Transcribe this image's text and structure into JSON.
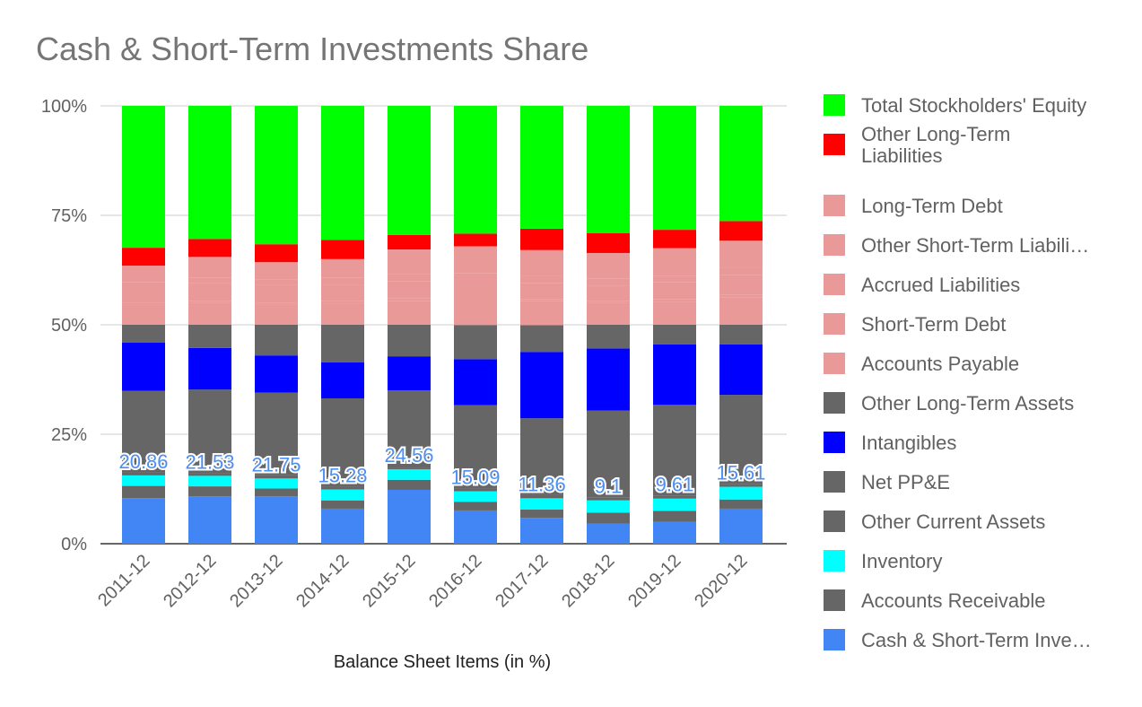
{
  "chart_data": {
    "type": "bar",
    "stacked": "percent",
    "title": "Cash & Short-Term Investments Share",
    "xlabel": "Balance Sheet Items (in %)",
    "ylabel": "",
    "ylim": [
      0,
      100
    ],
    "y_ticks": [
      "0%",
      "25%",
      "50%",
      "75%",
      "100%"
    ],
    "grid": true,
    "legend_position": "right",
    "categories": [
      "2011-12",
      "2012-12",
      "2013-12",
      "2014-12",
      "2015-12",
      "2016-12",
      "2017-12",
      "2018-12",
      "2019-12",
      "2020-12"
    ],
    "series": [
      {
        "name": "Cash & Short-Term Investments",
        "legend_label": "Cash & Short-Term Inve…",
        "color": "#4285f4",
        "values": [
          10.4,
          10.8,
          10.8,
          8.0,
          12.3,
          7.6,
          5.9,
          4.6,
          5.0,
          8.0
        ],
        "data_labels": [
          "20.86",
          "21.53",
          "21.75",
          "15.28",
          "24.56",
          "15.09",
          "11.36",
          "9.1",
          "9.61",
          "15.61"
        ]
      },
      {
        "name": "Accounts Receivable",
        "legend_label": "Accounts Receivable",
        "color": "#666666",
        "values": [
          2.8,
          2.3,
          1.8,
          1.9,
          2.3,
          2.0,
          1.9,
          2.5,
          2.5,
          2.1
        ]
      },
      {
        "name": "Inventory",
        "legend_label": "Inventory",
        "color": "#00ffff",
        "values": [
          2.4,
          2.4,
          2.3,
          2.5,
          2.4,
          2.4,
          2.6,
          2.8,
          2.8,
          2.9
        ]
      },
      {
        "name": "Other Current Assets",
        "legend_label": "Other Current Assets",
        "color": "#666666",
        "values": [
          0.6,
          0.5,
          0.8,
          0.6,
          0.4,
          0.6,
          0.7,
          0.6,
          0.7,
          0.6
        ]
      },
      {
        "name": "Net PP&E",
        "legend_label": "Net PP&E",
        "color": "#666666",
        "values": [
          18.7,
          19.2,
          18.8,
          20.2,
          17.6,
          19.1,
          17.6,
          19.9,
          20.7,
          20.4
        ]
      },
      {
        "name": "Intangibles",
        "legend_label": "Intangibles",
        "color": "#0000ff",
        "values": [
          11.0,
          9.5,
          8.5,
          8.2,
          7.8,
          10.5,
          15.2,
          14.2,
          13.8,
          11.5
        ]
      },
      {
        "name": "Other Long-Term Assets",
        "legend_label": "Other Long-Term Assets",
        "color": "#666666",
        "values": [
          4.1,
          5.3,
          7.0,
          8.6,
          7.2,
          7.8,
          6.1,
          5.4,
          4.5,
          4.5
        ]
      },
      {
        "name": "Accounts Payable",
        "legend_label": "Accounts Payable",
        "color": "#ea9999",
        "values": [
          4.5,
          5.0,
          4.7,
          4.8,
          5.5,
          5.9,
          5.5,
          5.0,
          5.3,
          6.3
        ]
      },
      {
        "name": "Short-Term Debt",
        "legend_label": "Short-Term Debt",
        "color": "#ea9999",
        "values": [
          0.5,
          0.5,
          0.4,
          0.6,
          0.5,
          0.3,
          0.5,
          0.5,
          0.6,
          0.5
        ]
      },
      {
        "name": "Accrued Liabilities",
        "legend_label": "Accrued Liabilities",
        "color": "#ea9999",
        "values": [
          3.5,
          4.0,
          4.0,
          3.8,
          4.0,
          4.2,
          3.7,
          3.5,
          3.8,
          4.5
        ]
      },
      {
        "name": "Other Short-Term Liabilities",
        "legend_label": "Other Short-Term Liabili…",
        "color": "#ea9999",
        "values": [
          1.2,
          1.3,
          1.2,
          1.5,
          1.5,
          1.5,
          1.5,
          1.5,
          1.5,
          1.8
        ]
      },
      {
        "name": "Long-Term Debt",
        "legend_label": "Long-Term Debt",
        "color": "#ea9999",
        "values": [
          3.8,
          4.7,
          4.0,
          4.3,
          5.7,
          6.1,
          6.0,
          5.9,
          6.3,
          6.1
        ]
      },
      {
        "name": "Other Long-Term Liabilities",
        "legend_label": "Other Long-Term Liabilities",
        "color": "#ff0000",
        "values": [
          4.1,
          4.1,
          4.1,
          4.4,
          3.3,
          2.9,
          4.9,
          4.5,
          4.2,
          4.5
        ]
      },
      {
        "name": "Total Stockholders' Equity",
        "legend_label": "Total Stockholders' Equity",
        "color": "#00ff00",
        "values": [
          32.4,
          30.4,
          31.6,
          30.6,
          29.5,
          29.2,
          28.1,
          29.1,
          28.3,
          26.3
        ]
      }
    ]
  }
}
